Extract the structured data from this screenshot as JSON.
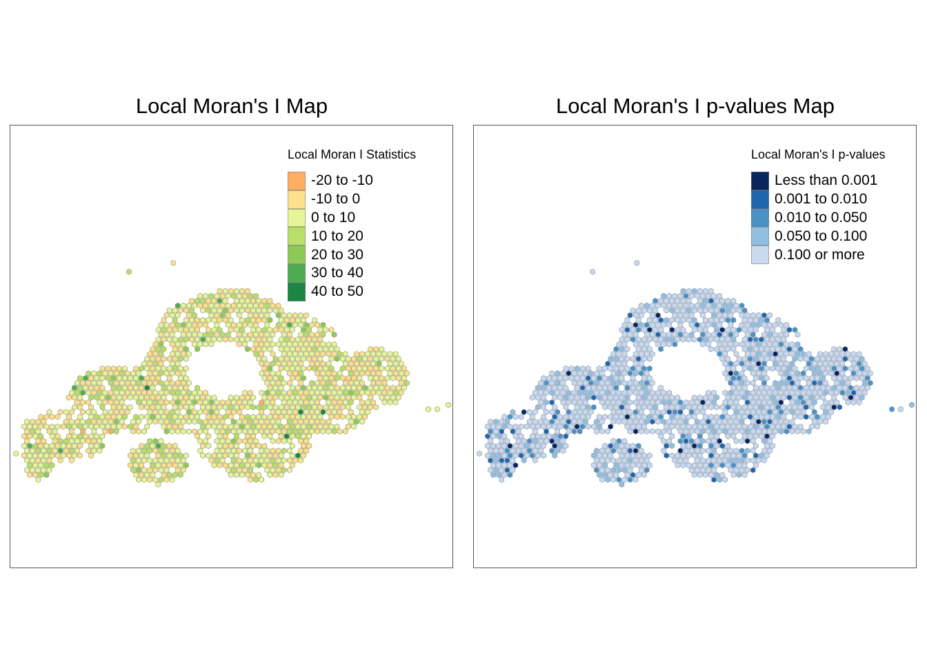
{
  "maps": [
    {
      "title": "Local Moran's I Map",
      "legend": {
        "title": "Local Moran I Statistics",
        "items": [
          {
            "label": "-20 to -10",
            "color": "#fdae61"
          },
          {
            "label": "-10 to 0",
            "color": "#fee08b"
          },
          {
            "label": "0 to 10",
            "color": "#e6f598"
          },
          {
            "label": "10 to 20",
            "color": "#b8e068"
          },
          {
            "label": "20 to 30",
            "color": "#8cca58"
          },
          {
            "label": "30 to 40",
            "color": "#4dac4f"
          },
          {
            "label": "40 to 50",
            "color": "#1a8641"
          }
        ]
      }
    },
    {
      "title": "Local Moran's I p-values Map",
      "legend": {
        "title": "Local Moran's I p-values",
        "items": [
          {
            "label": "Less than 0.001",
            "color": "#08255e"
          },
          {
            "label": "0.001 to 0.010",
            "color": "#2166ac"
          },
          {
            "label": "0.010 to 0.050",
            "color": "#4a91c6"
          },
          {
            "label": "0.050 to 0.100",
            "color": "#91bfdf"
          },
          {
            "label": "0.100 or more",
            "color": "#c9daef"
          }
        ]
      }
    }
  ]
}
